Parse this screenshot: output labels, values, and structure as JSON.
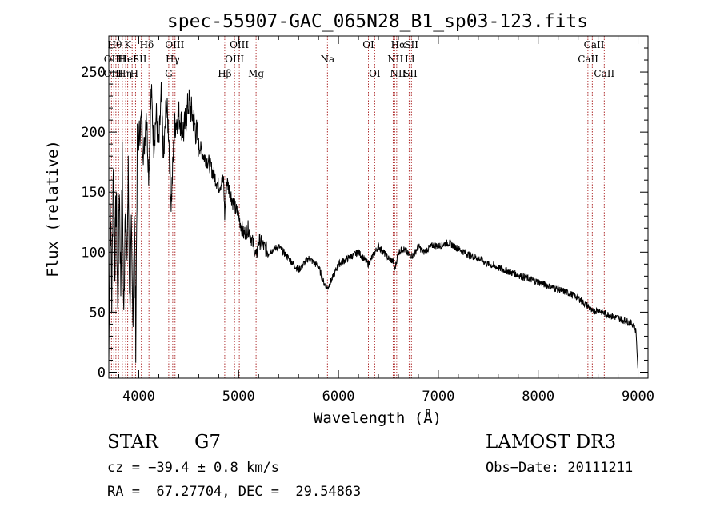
{
  "chart_data": {
    "type": "line",
    "title": "spec-55907-GAC_065N28_B1_sp03-123.fits",
    "xlabel": "Wavelength (Å)",
    "ylabel": "Flux (relative)",
    "xlim": [
      3700,
      9100
    ],
    "ylim": [
      -5,
      280
    ],
    "x_ticks": [
      4000,
      5000,
      6000,
      7000,
      8000,
      9000
    ],
    "y_ticks": [
      0,
      50,
      100,
      150,
      200,
      250
    ],
    "grid": false,
    "series": [
      {
        "name": "flux",
        "x": [
          3700,
          3715,
          3730,
          3745,
          3760,
          3775,
          3790,
          3805,
          3820,
          3835,
          3850,
          3865,
          3880,
          3895,
          3910,
          3925,
          3940,
          3955,
          3970,
          3985,
          4000,
          4025,
          4050,
          4075,
          4100,
          4125,
          4150,
          4175,
          4200,
          4225,
          4250,
          4275,
          4300,
          4325,
          4340,
          4360,
          4400,
          4450,
          4500,
          4550,
          4600,
          4650,
          4700,
          4750,
          4800,
          4850,
          4861,
          4880,
          4950,
          5000,
          5050,
          5100,
          5150,
          5175,
          5200,
          5300,
          5400,
          5500,
          5600,
          5700,
          5800,
          5850,
          5890,
          5950,
          6000,
          6100,
          6200,
          6300,
          6400,
          6500,
          6550,
          6563,
          6600,
          6650,
          6700,
          6750,
          6800,
          6850,
          6900,
          6950,
          7000,
          7100,
          7200,
          7300,
          7400,
          7500,
          7600,
          7700,
          7800,
          7900,
          8000,
          8100,
          8200,
          8300,
          8400,
          8450,
          8500,
          8542,
          8600,
          8662,
          8700,
          8800,
          8900,
          8950,
          8980,
          9000
        ],
        "y": [
          10,
          140,
          60,
          180,
          90,
          150,
          45,
          160,
          70,
          175,
          40,
          150,
          85,
          165,
          55,
          110,
          40,
          135,
          30,
          185,
          195,
          210,
          180,
          220,
          165,
          235,
          190,
          215,
          185,
          230,
          175,
          225,
          200,
          140,
          170,
          205,
          215,
          200,
          225,
          210,
          190,
          180,
          175,
          165,
          155,
          160,
          130,
          160,
          140,
          130,
          115,
          120,
          105,
          95,
          110,
          100,
          105,
          95,
          85,
          95,
          88,
          75,
          70,
          80,
          90,
          95,
          100,
          90,
          105,
          95,
          92,
          85,
          100,
          103,
          98,
          97,
          105,
          100,
          103,
          106,
          105,
          108,
          103,
          98,
          95,
          90,
          87,
          84,
          81,
          78,
          75,
          72,
          69,
          66,
          62,
          58,
          55,
          50,
          52,
          49,
          48,
          45,
          42,
          40,
          34,
          0
        ]
      }
    ],
    "line_labels": {
      "row1": [
        {
          "x": 3760,
          "text": "Hθ"
        },
        {
          "x": 3890,
          "text": "K"
        },
        {
          "x": 4080,
          "text": "Hδ"
        },
        {
          "x": 4360,
          "text": "OIII"
        },
        {
          "x": 5007,
          "text": "OIII"
        },
        {
          "x": 6300,
          "text": "OI"
        },
        {
          "x": 6600,
          "text": "Hα"
        },
        {
          "x": 6730,
          "text": "SII"
        },
        {
          "x": 8560,
          "text": "CaII"
        }
      ],
      "row2": [
        {
          "x": 3727,
          "text": "OII"
        },
        {
          "x": 3830,
          "text": "H"
        },
        {
          "x": 3890,
          "text": "HeI"
        },
        {
          "x": 4010,
          "text": "SII"
        },
        {
          "x": 4340,
          "text": "Hγ"
        },
        {
          "x": 4959,
          "text": "OIII"
        },
        {
          "x": 5890,
          "text": "Na"
        },
        {
          "x": 6570,
          "text": "NII"
        },
        {
          "x": 6715,
          "text": "LI"
        },
        {
          "x": 8500,
          "text": "CaII"
        }
      ],
      "row3": [
        {
          "x": 3745,
          "text": "OIII"
        },
        {
          "x": 3860,
          "text": "Hη"
        },
        {
          "x": 3955,
          "text": "H"
        },
        {
          "x": 4300,
          "text": "G"
        },
        {
          "x": 4861,
          "text": "Hβ"
        },
        {
          "x": 5175,
          "text": "Mg"
        },
        {
          "x": 6363,
          "text": "OI"
        },
        {
          "x": 6595,
          "text": "NII"
        },
        {
          "x": 6720,
          "text": "SII"
        },
        {
          "x": 8662,
          "text": "CaII"
        }
      ]
    },
    "line_positions": [
      3727,
      3750,
      3771,
      3798,
      3835,
      3869,
      3889,
      3934,
      3968,
      4026,
      4102,
      4300,
      4340,
      4363,
      4861,
      4959,
      5007,
      5175,
      5890,
      6300,
      6363,
      6548,
      6563,
      6583,
      6708,
      6716,
      6731,
      8498,
      8542,
      8662
    ]
  },
  "info": {
    "object_class": "STAR",
    "subclass": "G7",
    "survey": "LAMOST DR3",
    "cz": "cz = −39.4 ± 0.8 km/s",
    "obs_date": "Obs−Date: 20111211",
    "coords": "RA =  67.27704, DEC =  29.54863"
  },
  "colors": {
    "spectrum": "#000000",
    "line_markers": "#b03030",
    "axes": "#000000",
    "background": "#ffffff"
  }
}
